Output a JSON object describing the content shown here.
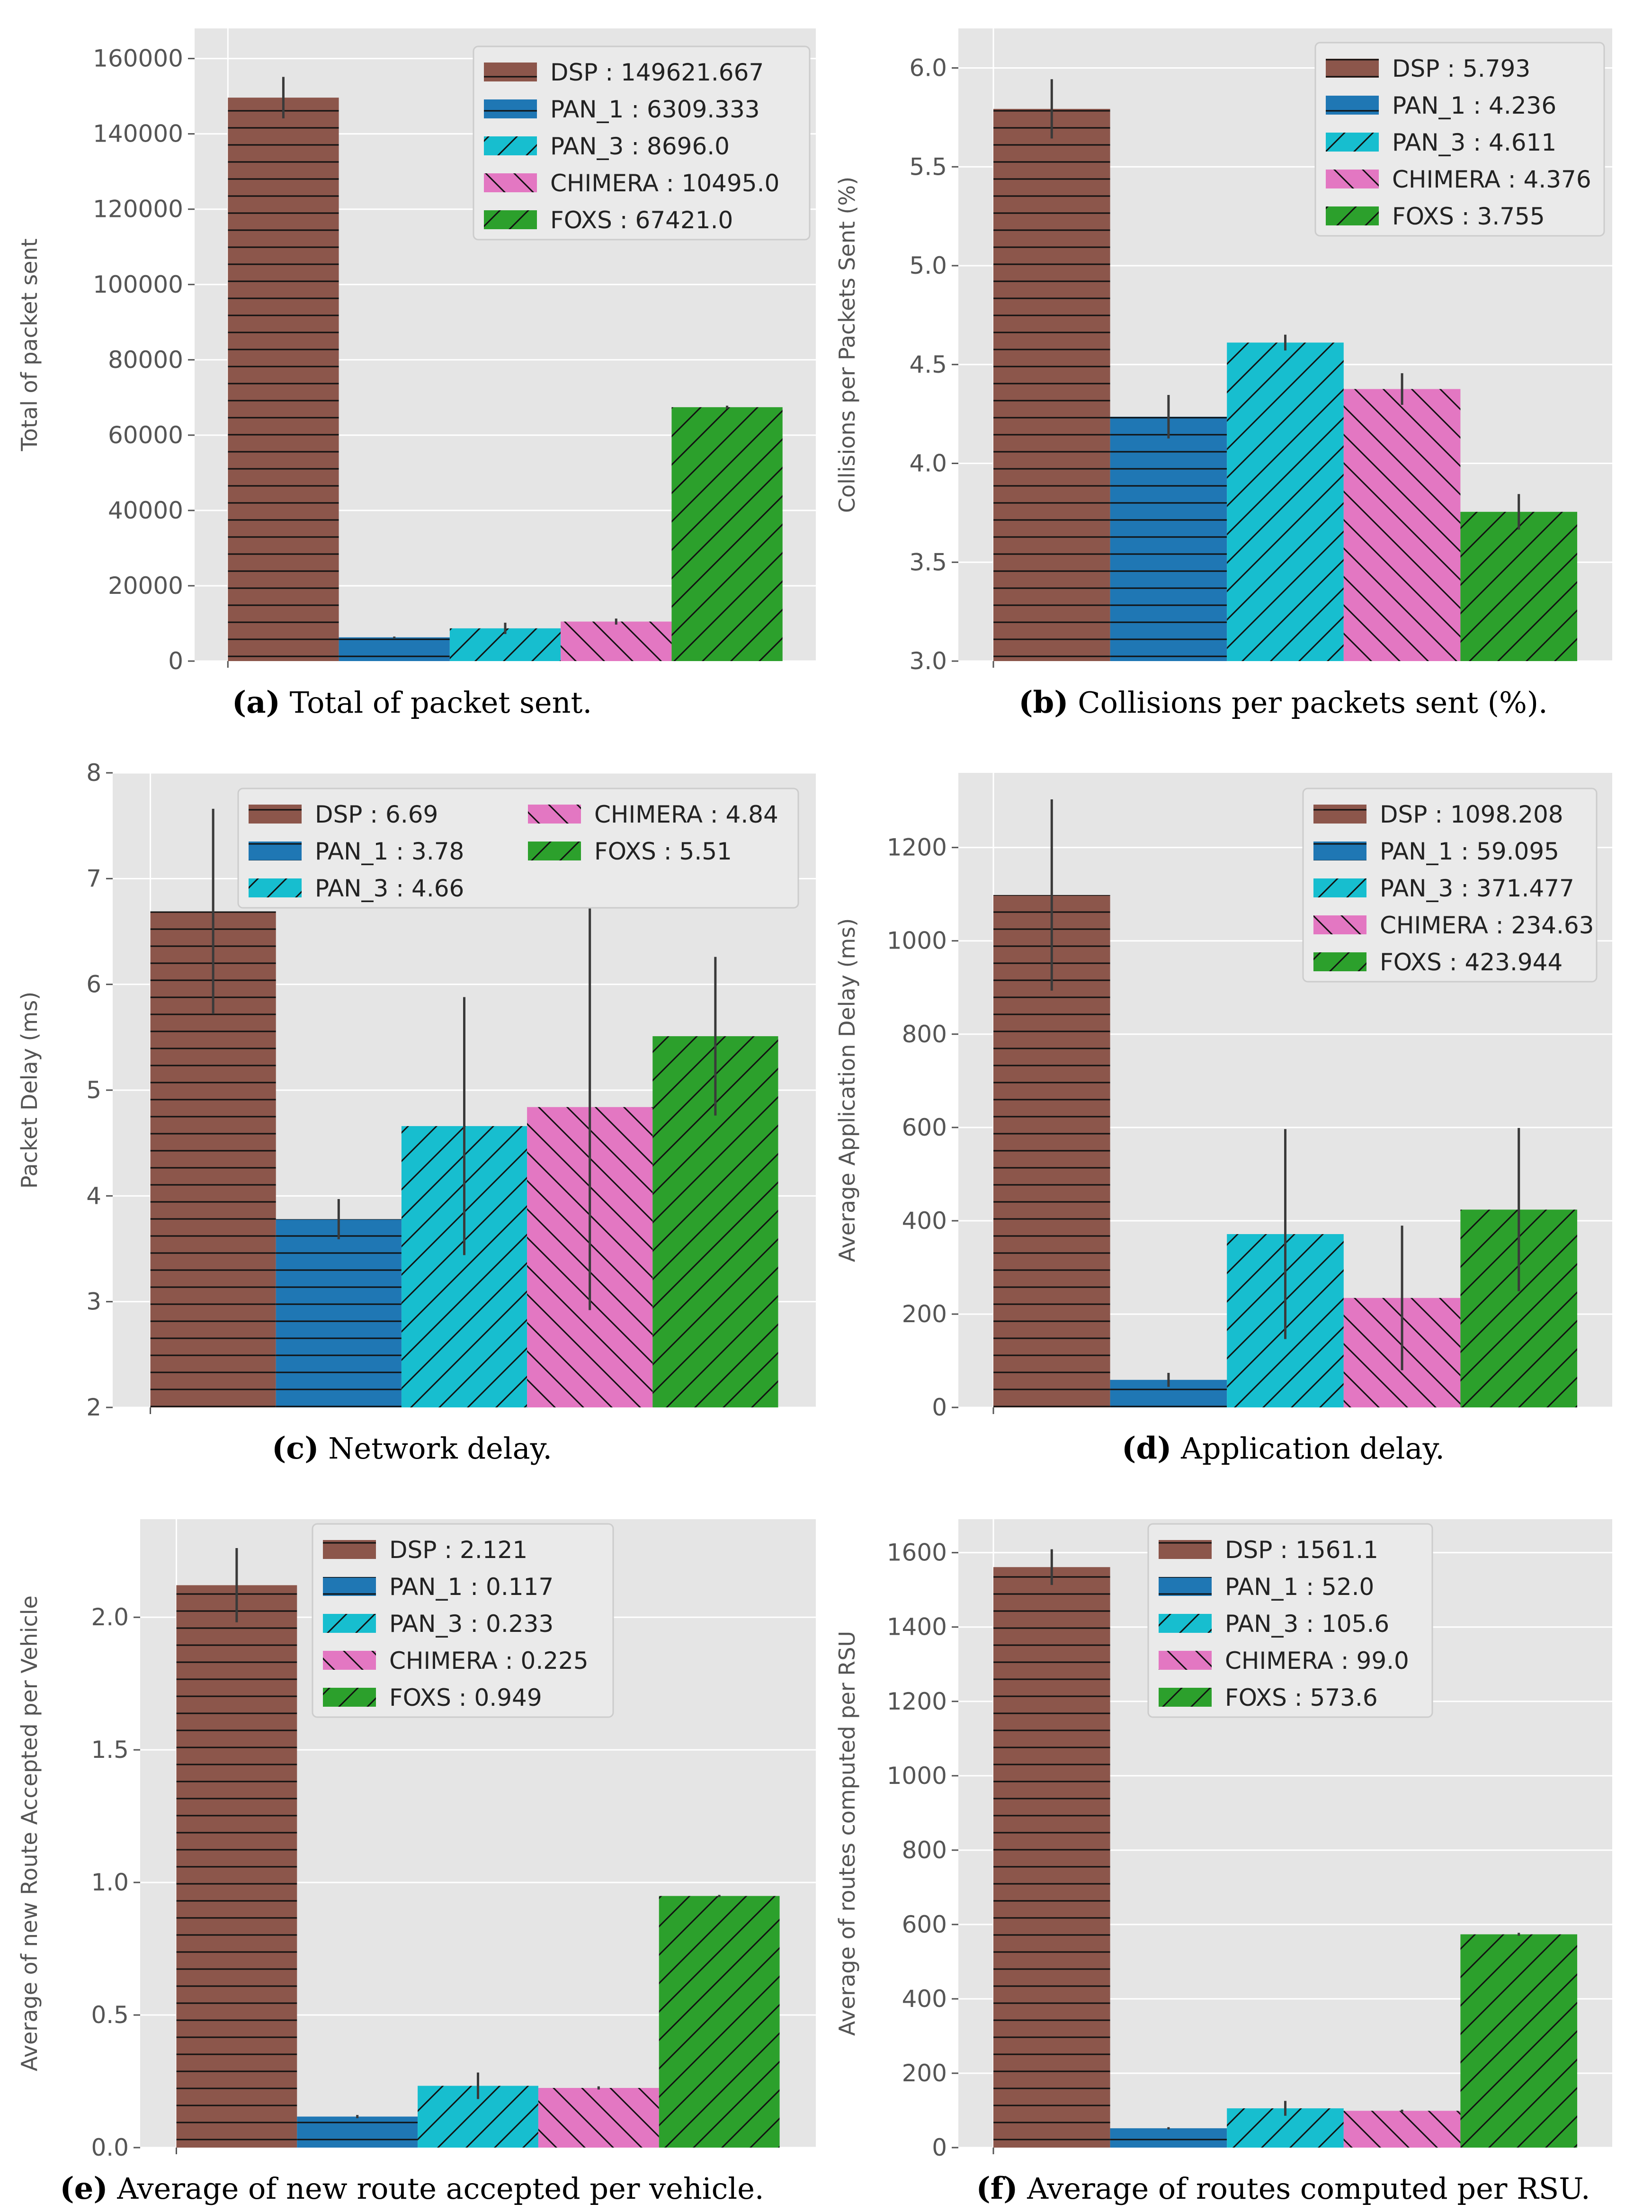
{
  "colors": {
    "DSP": "#8c564b",
    "PAN_1": "#1f77b4",
    "PAN_3": "#17becf",
    "CHIMERA": "#e377c2",
    "FOXS": "#2ca02c",
    "plot_bg": "#e5e5e5",
    "grid": "#ffffff",
    "errorbar": "#3a3a3a"
  },
  "chart_data": [
    {
      "id": "a",
      "type": "bar",
      "caption_letter": "(a)",
      "caption_text": " Total of packet sent.",
      "ylabel": "Total of packet sent",
      "ylim": [
        0,
        168000
      ],
      "yticks": [
        0,
        20000,
        40000,
        60000,
        80000,
        100000,
        120000,
        140000,
        160000
      ],
      "tick_labels": [
        "0",
        "20000",
        "40000",
        "60000",
        "80000",
        "100000",
        "120000",
        "140000",
        "160000"
      ],
      "legend_columns": 1,
      "series": [
        {
          "name": "DSP",
          "value": 149621.667,
          "err": 5500,
          "hatch": "horizontal",
          "legend": "DSP : 149621.667"
        },
        {
          "name": "PAN_1",
          "value": 6309.333,
          "err": 200,
          "hatch": "horizontal",
          "legend": "PAN_1 : 6309.333"
        },
        {
          "name": "PAN_3",
          "value": 8696.0,
          "err": 1500,
          "hatch": "slash",
          "legend": "PAN_3 : 8696.0"
        },
        {
          "name": "CHIMERA",
          "value": 10495.0,
          "err": 800,
          "hatch": "backslash",
          "legend": "CHIMERA : 10495.0"
        },
        {
          "name": "FOXS",
          "value": 67421.0,
          "err": 400,
          "hatch": "slash",
          "legend": "FOXS : 67421.0"
        }
      ]
    },
    {
      "id": "b",
      "type": "bar",
      "caption_letter": "(b)",
      "caption_text": " Collisions per packets sent (%).",
      "ylabel": "Collisions per Packets Sent (%)",
      "ylim": [
        3.0,
        6.2
      ],
      "yticks": [
        3.0,
        3.5,
        4.0,
        4.5,
        5.0,
        5.5,
        6.0
      ],
      "tick_labels": [
        "3.0",
        "3.5",
        "4.0",
        "4.5",
        "5.0",
        "5.5",
        "6.0"
      ],
      "legend_columns": 1,
      "series": [
        {
          "name": "DSP",
          "value": 5.793,
          "err": 0.15,
          "hatch": "horizontal",
          "legend": "DSP : 5.793"
        },
        {
          "name": "PAN_1",
          "value": 4.236,
          "err": 0.11,
          "hatch": "horizontal",
          "legend": "PAN_1 : 4.236"
        },
        {
          "name": "PAN_3",
          "value": 4.611,
          "err": 0.04,
          "hatch": "slash",
          "legend": "PAN_3 : 4.611"
        },
        {
          "name": "CHIMERA",
          "value": 4.376,
          "err": 0.08,
          "hatch": "backslash",
          "legend": "CHIMERA : 4.376"
        },
        {
          "name": "FOXS",
          "value": 3.755,
          "err": 0.09,
          "hatch": "slash",
          "legend": "FOXS : 3.755"
        }
      ]
    },
    {
      "id": "c",
      "type": "bar",
      "caption_letter": "(c)",
      "caption_text": " Network delay.",
      "ylabel": "Packet Delay (ms)",
      "ylim": [
        2,
        8
      ],
      "yticks": [
        2,
        3,
        4,
        5,
        6,
        7,
        8
      ],
      "tick_labels": [
        "2",
        "3",
        "4",
        "5",
        "6",
        "7",
        "8"
      ],
      "legend_columns": 2,
      "series": [
        {
          "name": "DSP",
          "value": 6.69,
          "err": 0.97,
          "hatch": "horizontal",
          "legend": "DSP : 6.69"
        },
        {
          "name": "PAN_1",
          "value": 3.78,
          "err": 0.19,
          "hatch": "horizontal",
          "legend": "PAN_1 : 3.78"
        },
        {
          "name": "PAN_3",
          "value": 4.66,
          "err": 1.22,
          "hatch": "slash",
          "legend": "PAN_3 : 4.66"
        },
        {
          "name": "CHIMERA",
          "value": 4.84,
          "err": 1.92,
          "hatch": "backslash",
          "legend": "CHIMERA : 4.84"
        },
        {
          "name": "FOXS",
          "value": 5.51,
          "err": 0.75,
          "hatch": "slash",
          "legend": "FOXS : 5.51"
        }
      ]
    },
    {
      "id": "d",
      "type": "bar",
      "caption_letter": "(d)",
      "caption_text": " Application delay.",
      "ylabel": "Average Application Delay (ms)",
      "ylim": [
        0,
        1360
      ],
      "yticks": [
        0,
        200,
        400,
        600,
        800,
        1000,
        1200
      ],
      "tick_labels": [
        "0",
        "200",
        "400",
        "600",
        "800",
        "1000",
        "1200"
      ],
      "legend_columns": 1,
      "series": [
        {
          "name": "DSP",
          "value": 1098.208,
          "err": 205,
          "hatch": "horizontal",
          "legend": "DSP : 1098.208"
        },
        {
          "name": "PAN_1",
          "value": 59.095,
          "err": 15,
          "hatch": "horizontal",
          "legend": "PAN_1 : 59.095"
        },
        {
          "name": "PAN_3",
          "value": 371.477,
          "err": 225,
          "hatch": "slash",
          "legend": "PAN_3 : 371.477"
        },
        {
          "name": "CHIMERA",
          "value": 234.63,
          "err": 155,
          "hatch": "backslash",
          "legend": "CHIMERA : 234.63"
        },
        {
          "name": "FOXS",
          "value": 423.944,
          "err": 175,
          "hatch": "slash",
          "legend": "FOXS : 423.944"
        }
      ]
    },
    {
      "id": "e",
      "type": "bar",
      "caption_letter": "(e)",
      "caption_text": " Average of new route accepted per vehicle.",
      "ylabel": "Average of new Route Accepted per Vehicle",
      "ylim": [
        0,
        2.37
      ],
      "yticks": [
        0.0,
        0.5,
        1.0,
        1.5,
        2.0
      ],
      "tick_labels": [
        "0.0",
        "0.5",
        "1.0",
        "1.5",
        "2.0"
      ],
      "legend_columns": 1,
      "series": [
        {
          "name": "DSP",
          "value": 2.121,
          "err": 0.14,
          "hatch": "horizontal",
          "legend": "DSP : 2.121"
        },
        {
          "name": "PAN_1",
          "value": 0.117,
          "err": 0.006,
          "hatch": "horizontal",
          "legend": "PAN_1 : 0.117"
        },
        {
          "name": "PAN_3",
          "value": 0.233,
          "err": 0.05,
          "hatch": "slash",
          "legend": "PAN_3 : 0.233"
        },
        {
          "name": "CHIMERA",
          "value": 0.225,
          "err": 0.006,
          "hatch": "backslash",
          "legend": "CHIMERA : 0.225"
        },
        {
          "name": "FOXS",
          "value": 0.949,
          "err": 0.004,
          "hatch": "slash",
          "legend": "FOXS : 0.949"
        }
      ]
    },
    {
      "id": "f",
      "type": "bar",
      "caption_letter": "(f)",
      "caption_text": " Average of routes computed per RSU.",
      "ylabel": "Average of routes computed per RSU",
      "ylim": [
        0,
        1690
      ],
      "yticks": [
        0,
        200,
        400,
        600,
        800,
        1000,
        1200,
        1400,
        1600
      ],
      "tick_labels": [
        "0",
        "200",
        "400",
        "600",
        "800",
        "1000",
        "1200",
        "1400",
        "1600"
      ],
      "legend_columns": 1,
      "series": [
        {
          "name": "DSP",
          "value": 1561.1,
          "err": 48,
          "hatch": "horizontal",
          "legend": "DSP : 1561.1"
        },
        {
          "name": "PAN_1",
          "value": 52.0,
          "err": 3,
          "hatch": "horizontal",
          "legend": "PAN_1 : 52.0"
        },
        {
          "name": "PAN_3",
          "value": 105.6,
          "err": 20,
          "hatch": "slash",
          "legend": "PAN_3 : 105.6"
        },
        {
          "name": "CHIMERA",
          "value": 99.0,
          "err": 3,
          "hatch": "backslash",
          "legend": "CHIMERA : 99.0"
        },
        {
          "name": "FOXS",
          "value": 573.6,
          "err": 4,
          "hatch": "slash",
          "legend": "FOXS : 573.6"
        }
      ]
    }
  ]
}
